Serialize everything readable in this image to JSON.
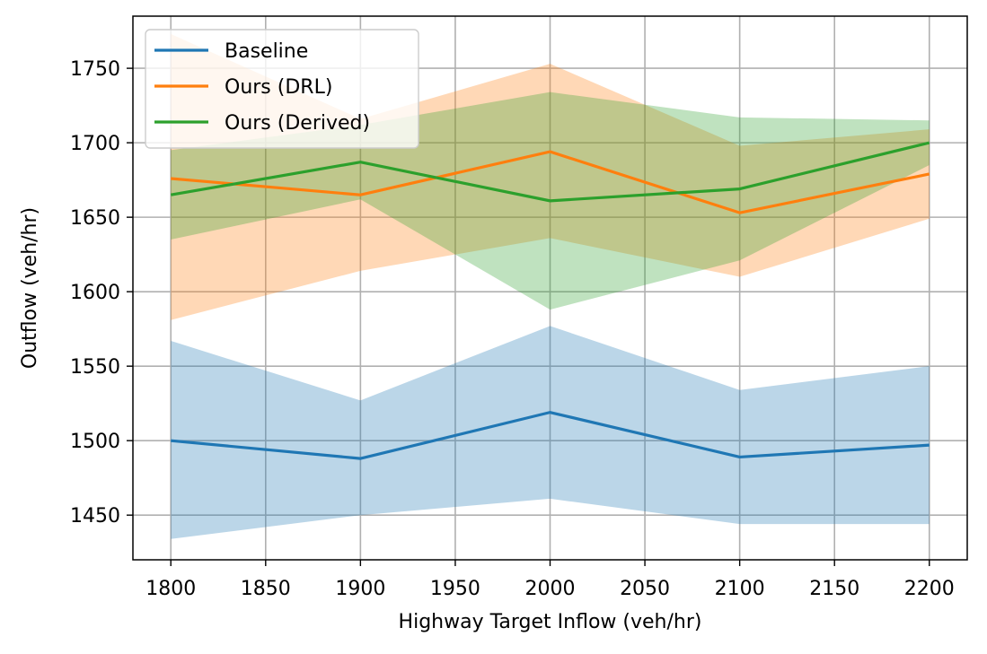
{
  "chart_data": {
    "type": "line",
    "xlabel": "Highway Target Inflow (veh/hr)",
    "ylabel": "Outflow (veh/hr)",
    "xlim": [
      1780,
      2220
    ],
    "ylim": [
      1420,
      1785
    ],
    "x_ticks": [
      1800,
      1850,
      1900,
      1950,
      2000,
      2050,
      2100,
      2150,
      2200
    ],
    "y_ticks": [
      1450,
      1500,
      1550,
      1600,
      1650,
      1700,
      1750
    ],
    "grid": true,
    "legend_position": "top-left",
    "x": [
      1800,
      1900,
      2000,
      2100,
      2200
    ],
    "series": [
      {
        "name": "Baseline",
        "color": "#1f77b4",
        "values": [
          1500,
          1488,
          1519,
          1489,
          1497
        ],
        "lower": [
          1434,
          1450,
          1461,
          1444,
          1444
        ],
        "upper": [
          1567,
          1527,
          1577,
          1534,
          1550
        ]
      },
      {
        "name": "Ours (DRL)",
        "color": "#ff7f0e",
        "values": [
          1676,
          1665,
          1694,
          1653,
          1679
        ],
        "lower": [
          1581,
          1614,
          1636,
          1610,
          1649
        ],
        "upper": [
          1773,
          1716,
          1753,
          1698,
          1709
        ]
      },
      {
        "name": "Ours (Derived)",
        "color": "#2ca02c",
        "values": [
          1665,
          1687,
          1661,
          1669,
          1700
        ],
        "lower": [
          1635,
          1662,
          1588,
          1621,
          1685
        ],
        "upper": [
          1695,
          1712,
          1734,
          1717,
          1715
        ]
      }
    ]
  }
}
